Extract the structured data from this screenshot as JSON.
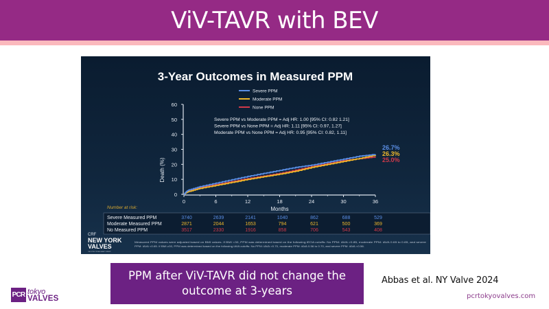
{
  "slide": {
    "title": "ViV-TAVR with BEV",
    "conclusion": "PPM after ViV-TAVR did not change the outcome at 3-years",
    "citation": "Abbas et al. NY Valve 2024",
    "website": "pcrtokyovalves.com",
    "logo": {
      "mark": "PCR",
      "line1": "tokyo",
      "line2": "VALVES"
    }
  },
  "embedded_figure": {
    "source_logo": {
      "tag": "CRF",
      "line1": "NEW YORK",
      "line2": "VALVES",
      "line3": "THE STRUCTURAL HEART SUMMIT"
    },
    "footnote_line1": "Measured PPM values were adjusted based on BMI values. If BMI <30, PPM was determined based on the following iEOA cutoffs: No PPM: iAVA >0.85, moderate PPM: iAVA 0.65 to 0.85, and severe",
    "footnote_line2": "PPM: iAVA <0.65. If BMI ≥30, PPM was determined based on the following iAVA cutoffs: No PPM: iAVA >0.70, moderate PPM: iAVA 0.56 to 0.70, and severe PPM: iAVA <0.56."
  },
  "chart_data": {
    "type": "line",
    "title": "3-Year Outcomes in Measured PPM",
    "xlabel": "Months",
    "ylabel": "Death (%)",
    "xlim": [
      0,
      36
    ],
    "ylim": [
      0,
      60
    ],
    "xticks": [
      0,
      6,
      12,
      18,
      24,
      30,
      36
    ],
    "yticks": [
      0,
      10,
      20,
      30,
      40,
      50,
      60
    ],
    "legend_position": "top-center",
    "series": [
      {
        "name": "Severe PPM",
        "color": "#5b8fe6",
        "end_label": "26.7%",
        "x": [
          0,
          0.5,
          1,
          3,
          6,
          9,
          12,
          15,
          18,
          21,
          24,
          27,
          30,
          33,
          36
        ],
        "y": [
          0,
          2,
          3,
          5.2,
          7.5,
          9.8,
          12,
          14,
          16,
          18,
          19.5,
          21.5,
          23.5,
          25.5,
          26.7
        ]
      },
      {
        "name": "Moderate PPM",
        "color": "#f0b82a",
        "end_label": "26.3%",
        "x": [
          0,
          0.5,
          1,
          3,
          6,
          9,
          12,
          15,
          18,
          21,
          24,
          27,
          30,
          33,
          36
        ],
        "y": [
          0,
          1.2,
          2,
          4,
          6,
          8,
          10,
          11.8,
          13.5,
          15.5,
          18,
          20,
          22,
          24,
          26.3
        ]
      },
      {
        "name": "None PPM",
        "color": "#d23a4a",
        "end_label": "25.0%",
        "x": [
          0,
          0.5,
          1,
          3,
          6,
          9,
          12,
          15,
          18,
          21,
          24,
          27,
          30,
          33,
          36
        ],
        "y": [
          0,
          1.6,
          2.5,
          4.5,
          6.5,
          8.5,
          10.5,
          12.2,
          14,
          16.2,
          18.5,
          20.5,
          22.5,
          23.8,
          25.0
        ]
      }
    ],
    "annotations": [
      "Severe PPM vs Moderate PPM = Adj HR: 1.00 [95% CI: 0.82 1.21]",
      "Severe PPM vs None PPM = Adj HR: 1.11 [95% CI: 0.97, 1.27]",
      "Moderate PPM vs None PPM = Adj HR: 0.95 [95% CI: 0.82, 1.11]"
    ],
    "risk_table": {
      "label": "Number at risk:",
      "rows": [
        {
          "name": "Severe Measured PPM",
          "color": "#5b8fe6",
          "values": [
            3740,
            2639,
            2141,
            1040,
            862,
            688,
            529
          ]
        },
        {
          "name": "Moderate Measured PPM",
          "color": "#f0b82a",
          "values": [
            2871,
            2044,
            1653,
            794,
            621,
            500,
            369
          ]
        },
        {
          "name": "No Measured PPM",
          "color": "#d23a4a",
          "values": [
            3517,
            2330,
            1916,
            858,
            706,
            543,
            408
          ]
        }
      ]
    }
  }
}
